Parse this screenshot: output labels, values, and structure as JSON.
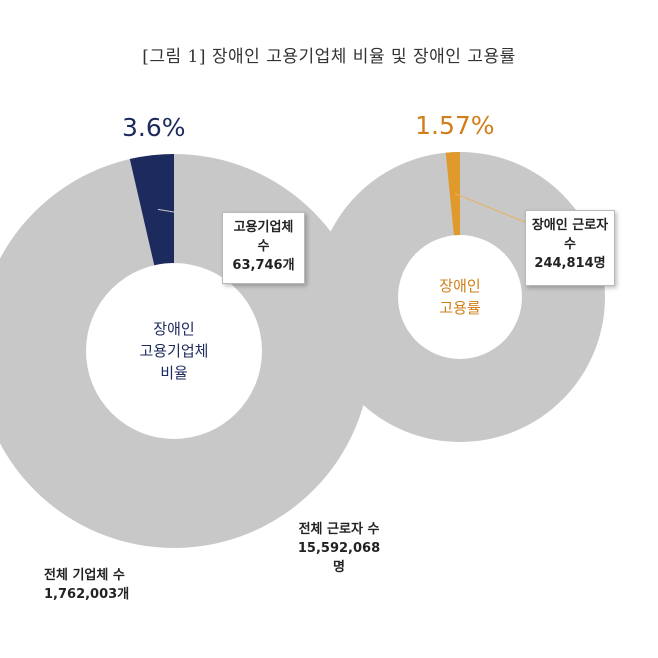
{
  "title": "[그림 1] 장애인 고용기업체 비율 및 장애인 고용률",
  "chart_data": [
    {
      "type": "pie",
      "name": "장애인 고용기업체 비율",
      "center_label": [
        "장애인",
        "고용기업체",
        "비율"
      ],
      "percent_label": "3.6%",
      "slices": [
        {
          "label": "고용기업체 수",
          "value": 63746,
          "value_label": "63,746개",
          "color": "#1c2a5e"
        },
        {
          "label": "전체 기업체 수",
          "value": 1762003,
          "value_label": "1,762,003개",
          "color": "#c8c8c8"
        }
      ],
      "highlight_percent": 3.6,
      "text_color": "#1c2a5e"
    },
    {
      "type": "pie",
      "name": "장애인 고용률",
      "center_label": [
        "장애인",
        "고용률"
      ],
      "percent_label": "1.57%",
      "slices": [
        {
          "label": "장애인 근로자 수",
          "value": 244814,
          "value_label": "244,814명",
          "color": "#e09a2c"
        },
        {
          "label": "전체 근로자 수",
          "value": 15592068,
          "value_label": "15,592,068명",
          "color": "#c8c8c8"
        }
      ],
      "highlight_percent": 1.57,
      "text_color": "#d07f1a"
    }
  ]
}
